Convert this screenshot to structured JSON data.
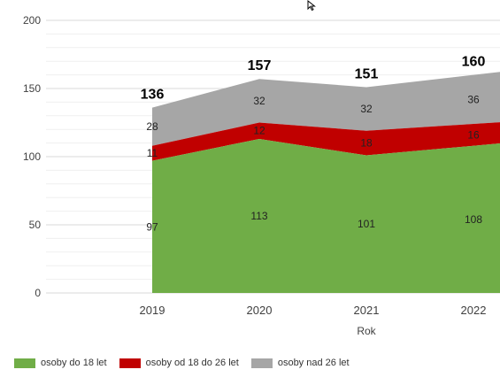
{
  "chart_data": {
    "type": "area",
    "stacked": true,
    "categories": [
      "2019",
      "2020",
      "2021",
      "2022"
    ],
    "series": [
      {
        "name": "osoby do 18 let",
        "values": [
          97,
          113,
          101,
          108
        ],
        "color": "#70AD47"
      },
      {
        "name": "osoby od 18 do 26 let",
        "values": [
          11,
          12,
          18,
          16
        ],
        "color": "#C00000"
      },
      {
        "name": "osoby nad 26 let",
        "values": [
          28,
          32,
          32,
          36
        ],
        "color": "#A6A6A6"
      }
    ],
    "totals": [
      136,
      157,
      151,
      160
    ],
    "xlabel": "Rok",
    "ylabel": "",
    "ylim": [
      0,
      200
    ],
    "yticks": [
      0,
      50,
      100,
      150,
      200
    ],
    "grid": true,
    "legend_position": "bottom-left"
  }
}
